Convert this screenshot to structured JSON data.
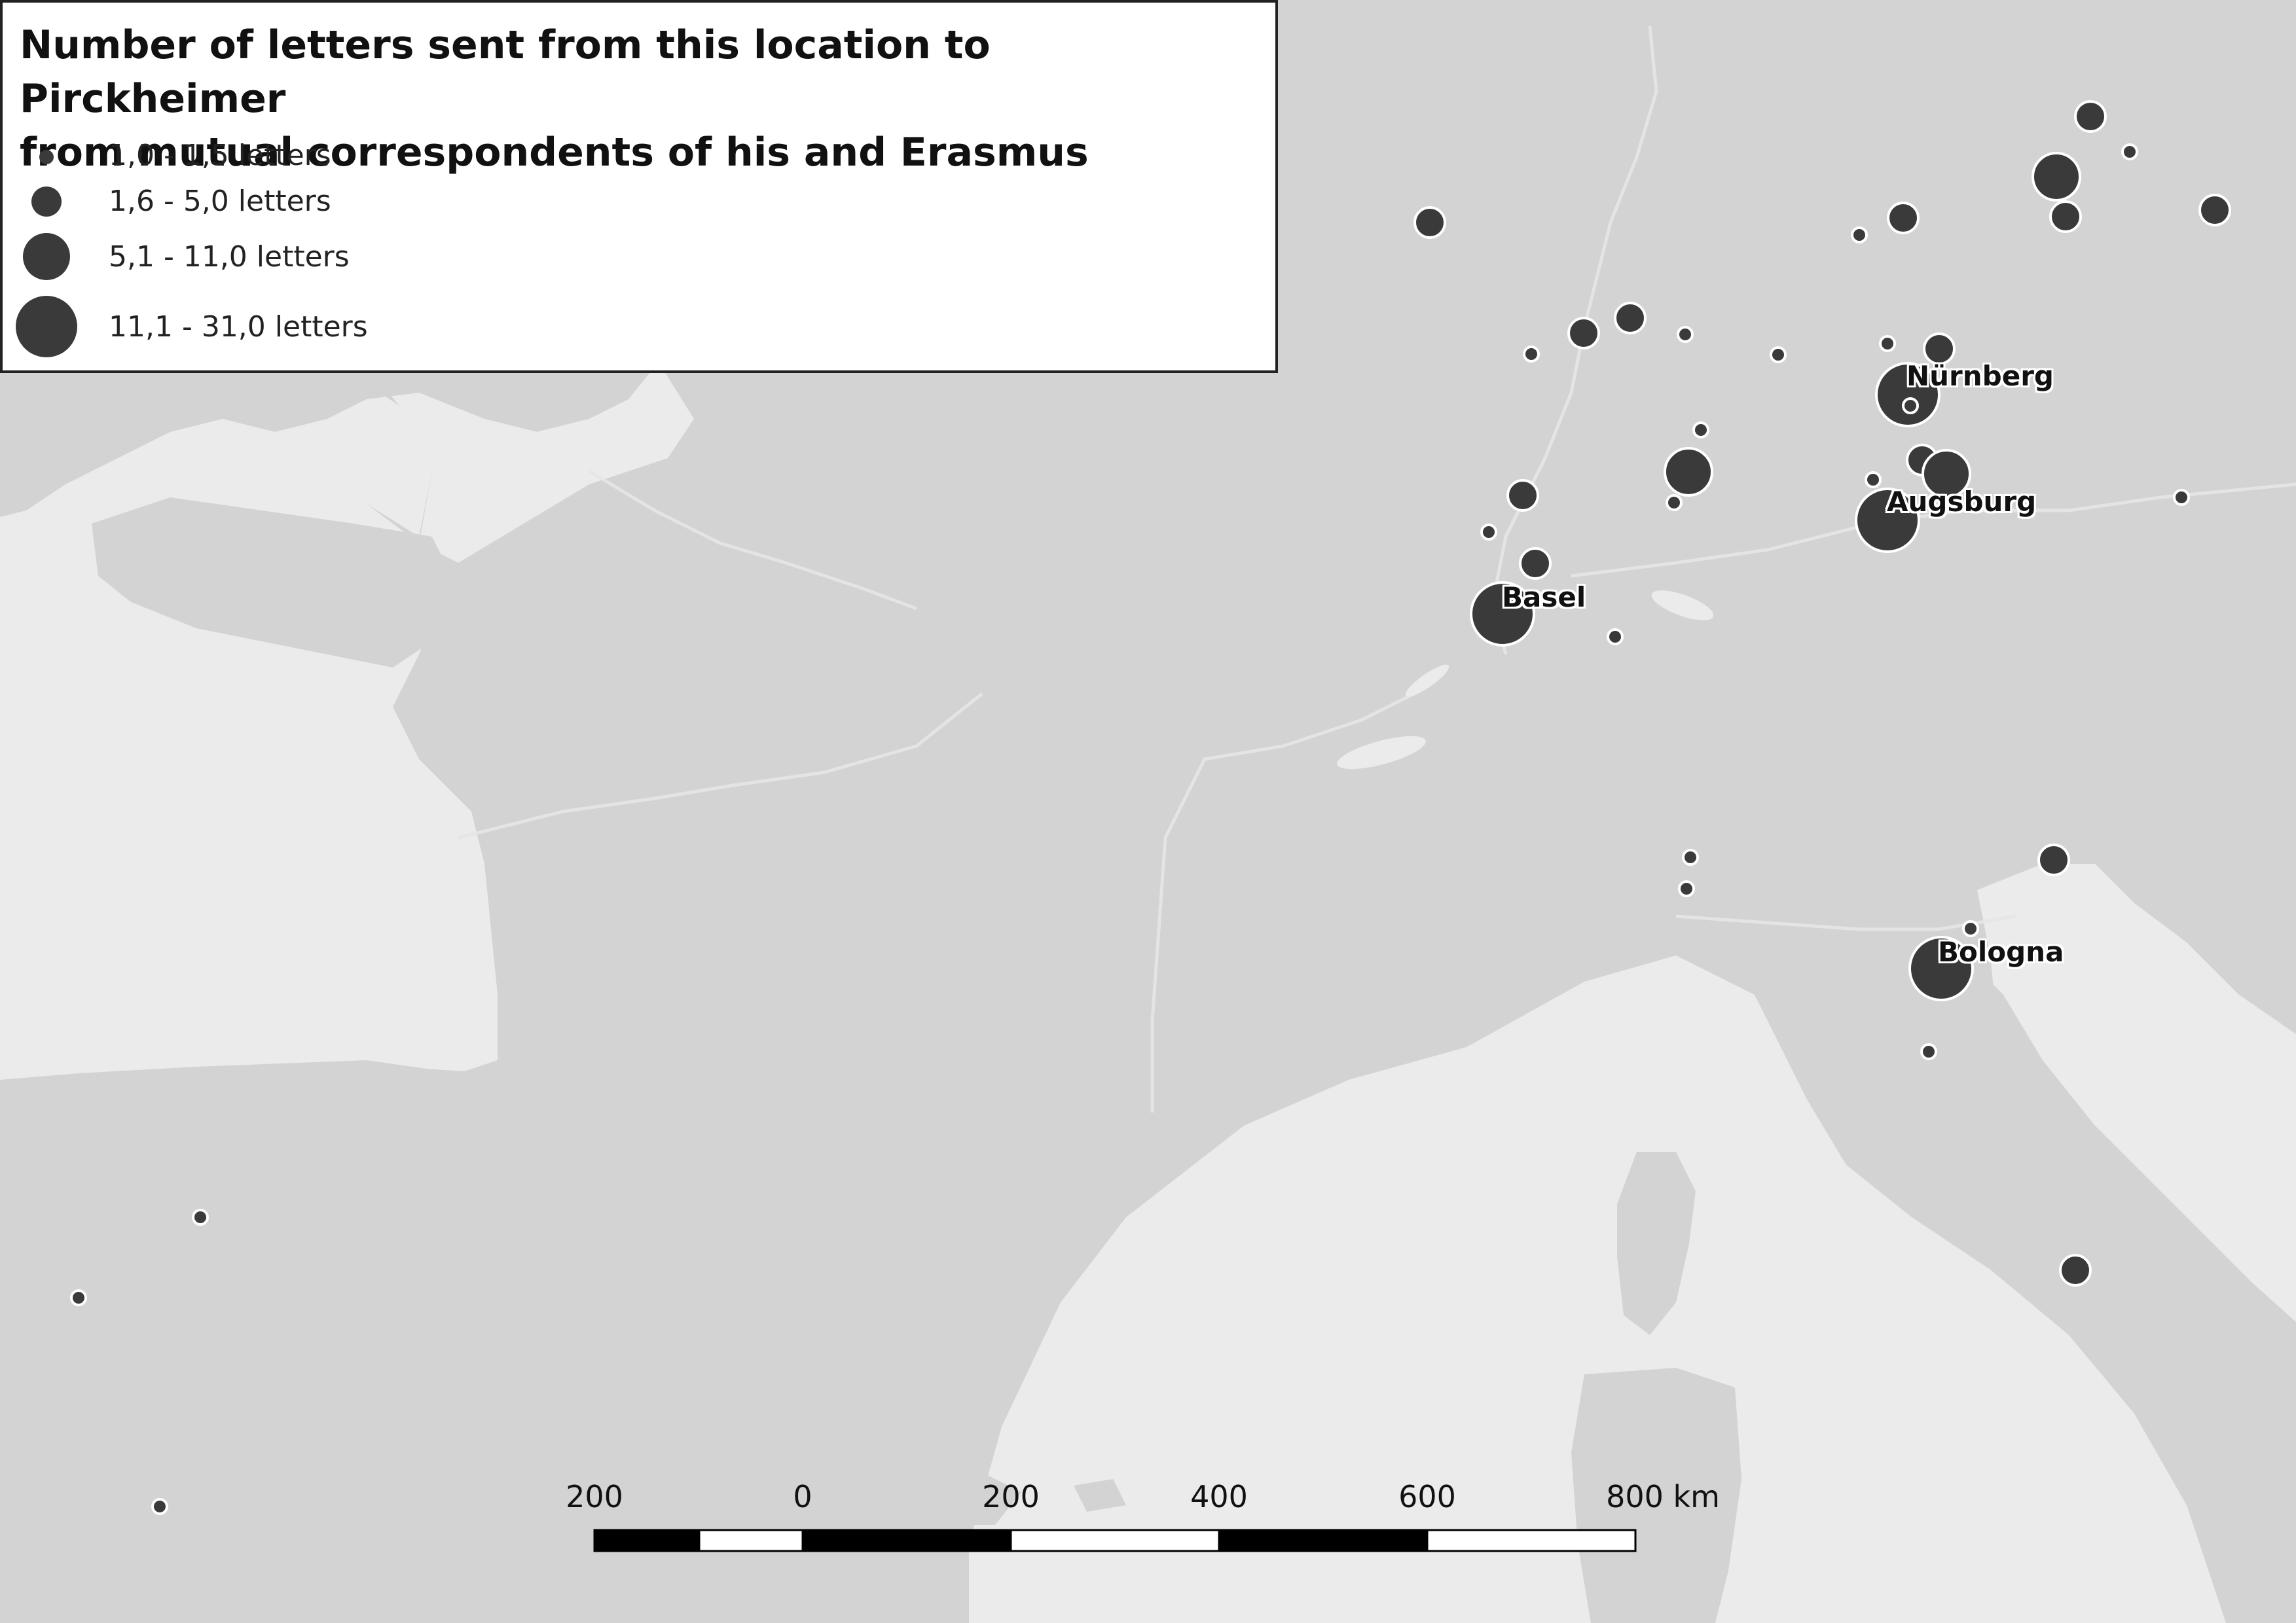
{
  "title": "Number of letters sent from this location to Pirckheimer from mutual correspondents of his and Erasmus",
  "title_lines": [
    "Number of letters sent from this location to Pirckheimer",
    "from mutual correspondents of his and Erasmus"
  ],
  "legend": [
    {
      "class": "1",
      "label": "1,0 - 1,5 letters"
    },
    {
      "class": "2",
      "label": "1,6 - 5,0 letters"
    },
    {
      "class": "3",
      "label": "5,1 - 11,0 letters"
    },
    {
      "class": "4",
      "label": "11,1 - 31,0 letters"
    }
  ],
  "labeled_cities": [
    {
      "name": "Nürnberg",
      "letter_class": "4"
    },
    {
      "name": "Augsburg",
      "letter_class": "4"
    },
    {
      "name": "Basel",
      "letter_class": "4"
    },
    {
      "name": "Bologna",
      "letter_class": "4"
    }
  ],
  "scale_bar": {
    "labels": [
      "200",
      "0",
      "200",
      "400",
      "600",
      "800 km"
    ],
    "unit": "km"
  },
  "colors": {
    "sea": "#ebebeb",
    "land": "#d3d3d3",
    "symbol_fill": "#3a3a3a",
    "symbol_stroke": "#ffffff"
  }
}
